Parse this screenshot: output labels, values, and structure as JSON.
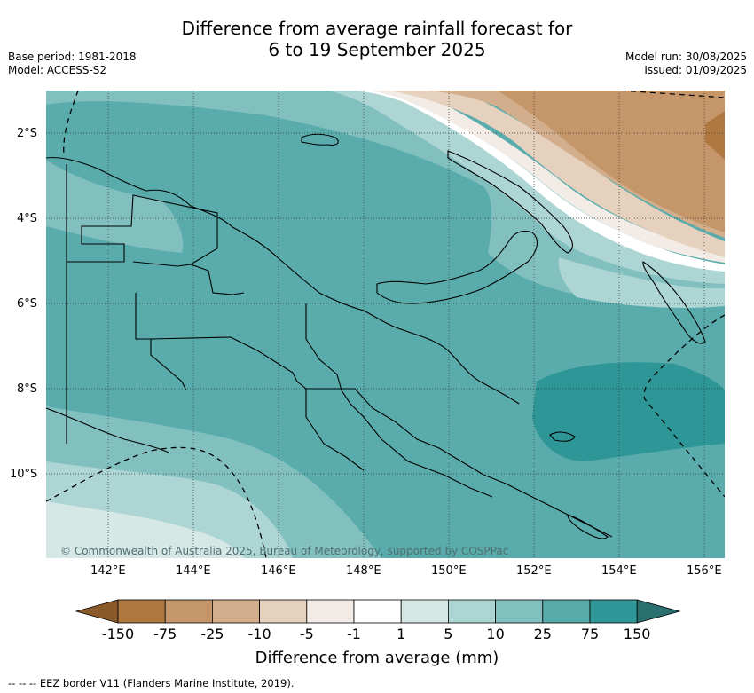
{
  "title_line1": "Difference from average rainfall forecast for",
  "title_line2": "6 to 19 September 2025",
  "base_period": "Base period: 1981-2018",
  "model": "Model: ACCESS-S2",
  "model_run": "Model run: 30/08/2025",
  "issued": "Issued: 01/09/2025",
  "copyright": "© Commonwealth of Australia 2025, Bureau of Meteorology, supported by COSPPac",
  "lat_labels": [
    "2°S",
    "4°S",
    "6°S",
    "8°S",
    "10°S"
  ],
  "lon_labels": [
    "142°E",
    "144°E",
    "146°E",
    "148°E",
    "150°E",
    "152°E",
    "154°E",
    "156°E"
  ],
  "colorbar": {
    "title": "Difference from average (mm)",
    "labels": [
      "-150",
      "-75",
      "-25",
      "-10",
      "-5",
      "-1",
      "1",
      "5",
      "10",
      "25",
      "75",
      "150"
    ],
    "colors": [
      "#8b5a2b",
      "#ae7840",
      "#c4966a",
      "#d3ae8c",
      "#e6d0be",
      "#f2ebe6",
      "#ffffff",
      "#d6e8e6",
      "#acd5d4",
      "#82bfbf",
      "#58abab",
      "#2e9696",
      "#2a7070"
    ]
  },
  "eez_note": "--  --  -- EEZ border V11 (Flanders Marine Institute, 2019)."
}
